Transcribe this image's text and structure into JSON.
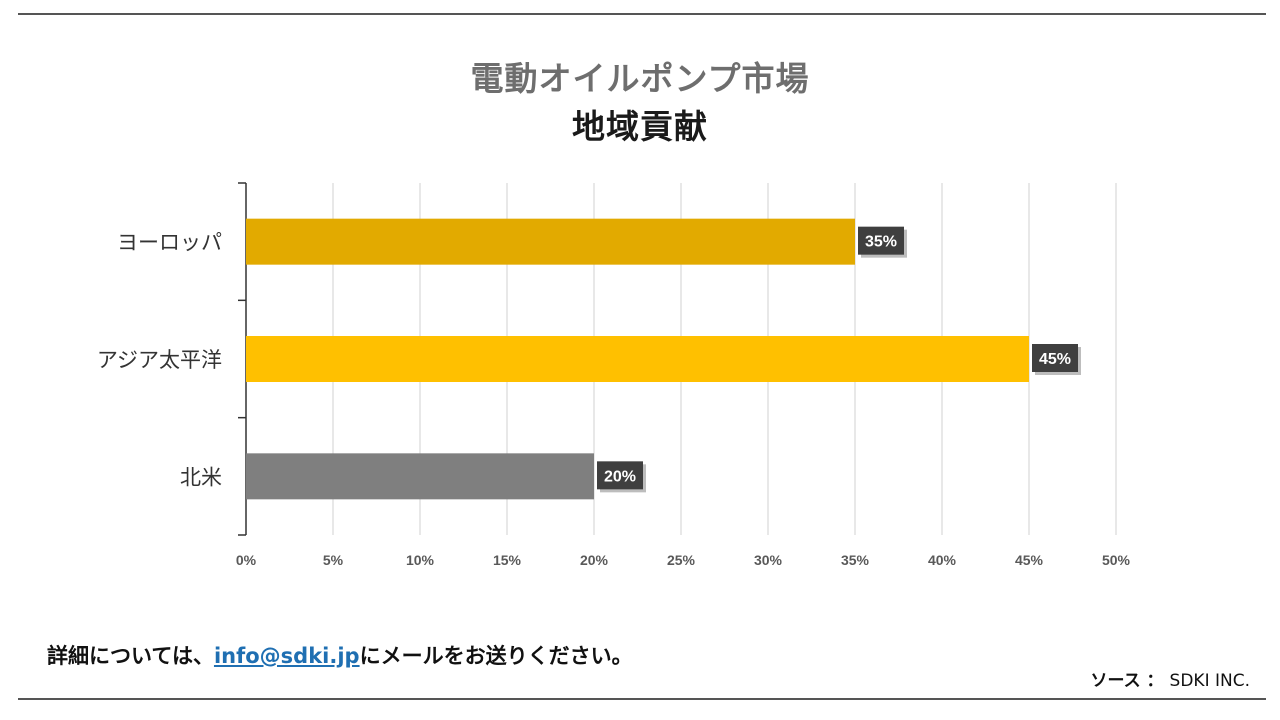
{
  "header": {
    "title_line1": "電動オイルポンプ市場",
    "title_line2": "地域貢献"
  },
  "chart_data": {
    "type": "bar",
    "orientation": "horizontal",
    "title": "電動オイルポンプ市場 地域貢献",
    "categories": [
      "ヨーロッパ",
      "アジア太平洋",
      "北米"
    ],
    "values": [
      35,
      45,
      20
    ],
    "data_labels": [
      "35%",
      "45%",
      "20%"
    ],
    "colors": [
      "#e2aa00",
      "#ffc000",
      "#7f7f7f"
    ],
    "xlim": [
      0,
      50
    ],
    "xticks": [
      0,
      5,
      10,
      15,
      20,
      25,
      30,
      35,
      40,
      45,
      50
    ],
    "xtick_labels": [
      "0%",
      "5%",
      "10%",
      "15%",
      "20%",
      "25%",
      "30%",
      "35%",
      "40%",
      "45%",
      "50%"
    ],
    "xlabel": "",
    "ylabel": "",
    "grid": true
  },
  "footer": {
    "text_before": "詳細については、",
    "email": "info@sdki.jp",
    "text_after": "にメールをお送りください。"
  },
  "source": {
    "label": "ソース ：",
    "value": "SDKI INC."
  }
}
